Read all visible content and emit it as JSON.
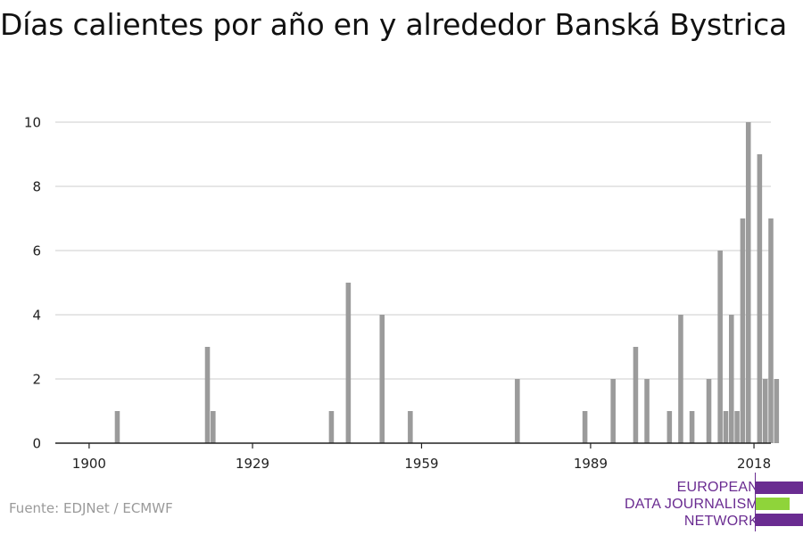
{
  "title": "Días calientes por año en y alrededor Banská Bystrica",
  "source": "Fuente: EDJNet / ECMWF",
  "logo": {
    "lines": [
      "EUROPEAN",
      "DATA JOURNALISM",
      "NETWORK"
    ],
    "colors": {
      "purple": "#6a2c91",
      "green": "#8fd43a"
    }
  },
  "colors": {
    "bar": "#9b9b9b",
    "grid": "#dddddd",
    "axis": "#222222",
    "tick_text": "#222222"
  },
  "chart_data": {
    "type": "bar",
    "title": "Días calientes por año en y alrededor Banská Bystrica",
    "xlabel": "",
    "ylabel": "",
    "xlim": [
      1894,
      2021
    ],
    "ylim": [
      0,
      10
    ],
    "x_ticks": [
      1900,
      1929,
      1959,
      1989,
      2018
    ],
    "y_ticks": [
      0,
      2,
      4,
      6,
      8,
      10
    ],
    "grid": true,
    "x": [
      1905,
      1921,
      1922,
      1943,
      1946,
      1952,
      1957,
      1976,
      1988,
      1993,
      1997,
      1999,
      2003,
      2005,
      2007,
      2010,
      2012,
      2013,
      2014,
      2015,
      2016,
      2017,
      2019,
      2020,
      2021,
      2022
    ],
    "values": [
      1,
      3,
      1,
      1,
      5,
      4,
      1,
      2,
      1,
      2,
      3,
      2,
      1,
      4,
      1,
      2,
      6,
      1,
      4,
      1,
      7,
      10,
      9,
      2,
      7,
      2
    ]
  }
}
